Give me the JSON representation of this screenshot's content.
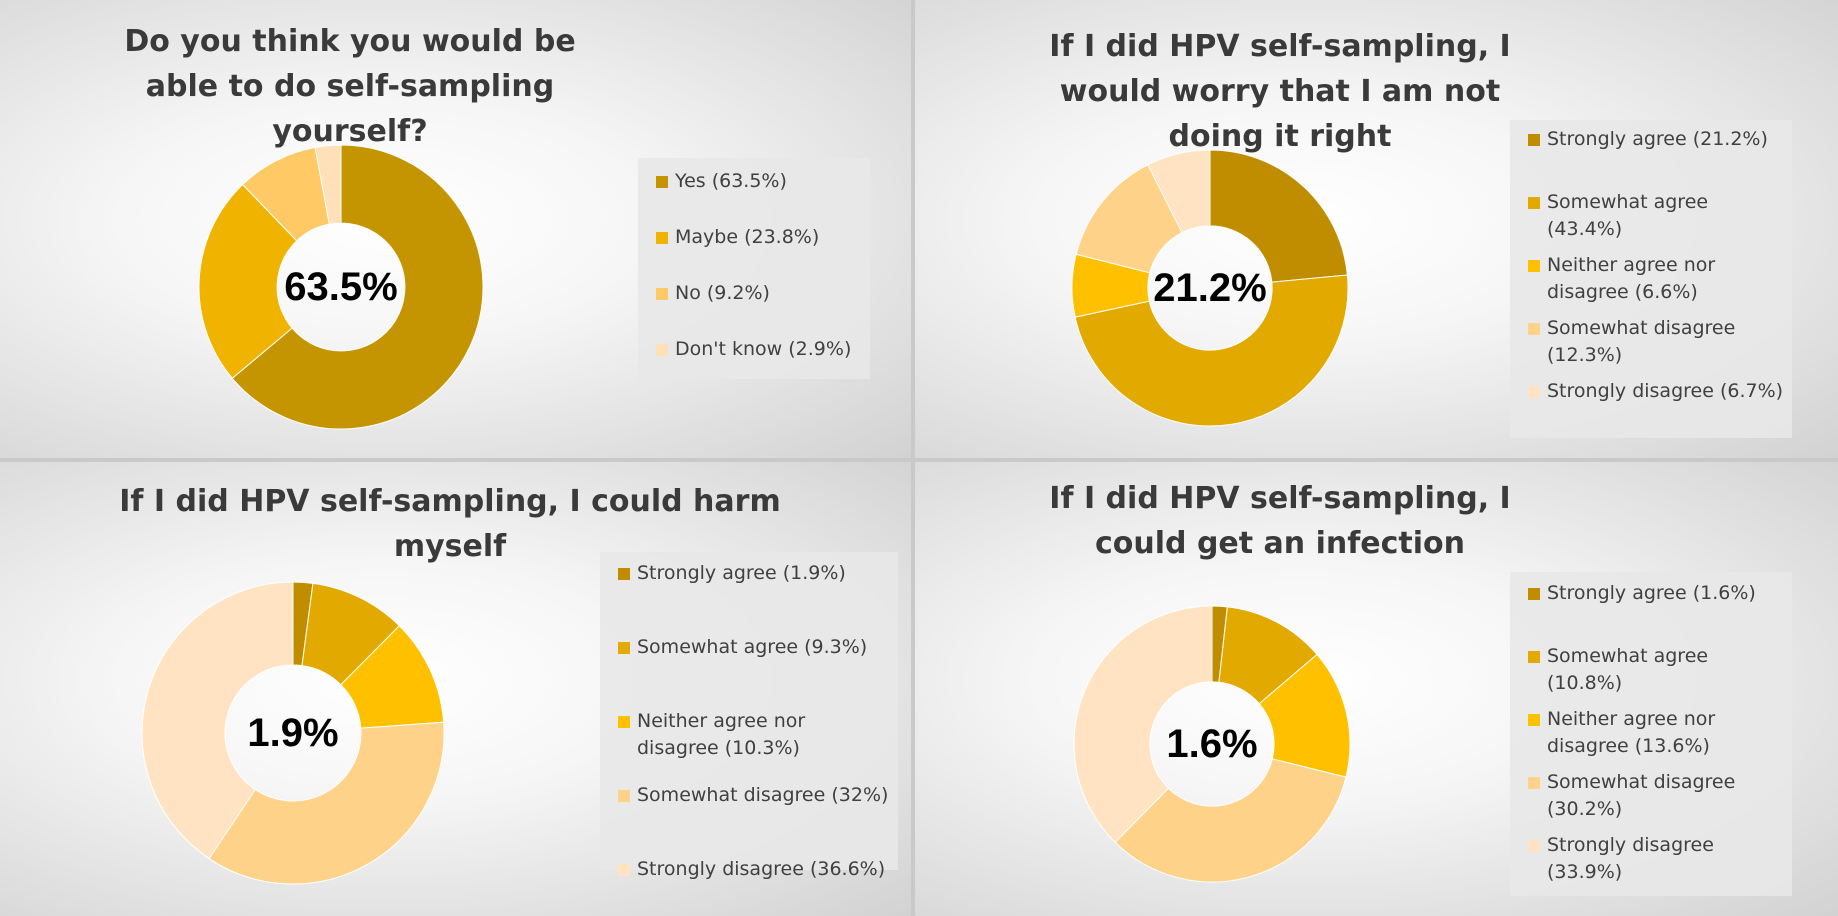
{
  "chart_data": [
    {
      "type": "pie",
      "title": "Do you think you would be able to do self-sampling yourself?",
      "center_label": "63.5%",
      "categories": [
        "Yes",
        "Maybe",
        "No",
        "Don't know"
      ],
      "values": [
        63.5,
        23.8,
        9.2,
        2.9
      ],
      "legend_labels": [
        "Yes (63.5%)",
        "Maybe (23.8%)",
        "No (9.2%)",
        "Don't know (2.9%)"
      ],
      "colors": [
        "#C49500",
        "#F0B300",
        "#FFC966",
        "#FFE0B8"
      ],
      "legend_position": "right"
    },
    {
      "type": "pie",
      "title": "If I did HPV self-sampling, I would worry that I am not doing it right",
      "center_label": "21.2%",
      "categories": [
        "Strongly agree",
        "Somewhat agree",
        "Neither agree nor disagree",
        "Somewhat disagree",
        "Strongly disagree"
      ],
      "values": [
        21.2,
        43.4,
        6.6,
        12.3,
        6.7
      ],
      "legend_labels": [
        "Strongly agree (21.2%)",
        "Somewhat agree (43.4%)",
        "Neither agree nor disagree (6.6%)",
        "Somewhat disagree (12.3%)",
        "Strongly disagree (6.7%)"
      ],
      "colors": [
        "#C18D00",
        "#E2A900",
        "#FFC000",
        "#FFD28A",
        "#FFE3C2"
      ],
      "legend_position": "right"
    },
    {
      "type": "pie",
      "title": "If I did HPV self-sampling, I could harm myself",
      "center_label": "1.9%",
      "categories": [
        "Strongly agree",
        "Somewhat agree",
        "Neither agree nor disagree",
        "Somewhat disagree",
        "Strongly disagree"
      ],
      "values": [
        1.9,
        9.3,
        10.3,
        32,
        36.6
      ],
      "legend_labels": [
        "Strongly agree (1.9%)",
        "Somewhat agree (9.3%)",
        "Neither agree nor disagree (10.3%)",
        "Somewhat disagree (32%)",
        "Strongly disagree (36.6%)"
      ],
      "colors": [
        "#C18D00",
        "#E2A900",
        "#FFC000",
        "#FFD28A",
        "#FFE3C2"
      ],
      "legend_position": "right"
    },
    {
      "type": "pie",
      "title": "If I did HPV self-sampling, I could get an infection",
      "center_label": "1.6%",
      "categories": [
        "Strongly agree",
        "Somewhat agree",
        "Neither agree nor disagree",
        "Somewhat disagree",
        "Strongly disagree"
      ],
      "values": [
        1.6,
        10.8,
        13.6,
        30.2,
        33.9
      ],
      "legend_labels": [
        "Strongly agree (1.6%)",
        "Somewhat agree (10.8%)",
        "Neither agree nor disagree (13.6%)",
        "Somewhat disagree (30.2%)",
        "Strongly disagree (33.9%)"
      ],
      "colors": [
        "#C18D00",
        "#E2A900",
        "#FFC000",
        "#FFD28A",
        "#FFE3C2"
      ],
      "legend_position": "right"
    }
  ]
}
